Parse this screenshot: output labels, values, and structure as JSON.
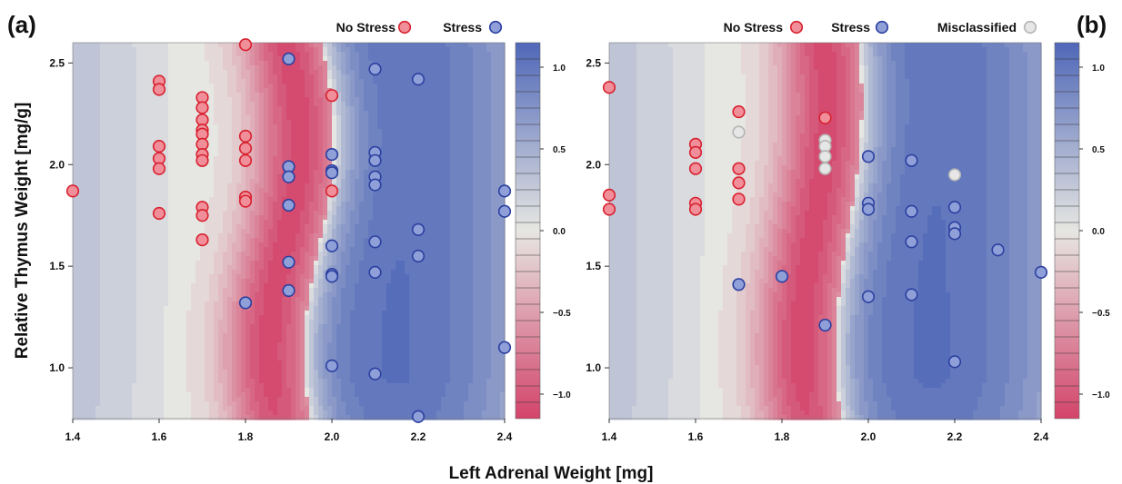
{
  "figure": {
    "xlabel": "Left Adrenal Weight [mg]",
    "ylabel": "Relative Thymus  Weight [mg/g]"
  },
  "colors": {
    "no_stress_fill": "#f08f99",
    "no_stress_edge": "#d8202f",
    "stress_fill": "#8f9fd8",
    "stress_edge": "#2b3fa0",
    "misclassified_fill": "#e6e6e6",
    "misclassified_edge": "#b4b4b4",
    "high": "#4f67b8",
    "mid": "#e6e6e2",
    "low": "#d3446a"
  },
  "chart_data": [
    {
      "type": "scatter",
      "panel": "(a)",
      "background": "filled contour (decision function)",
      "xlim": [
        1.4,
        2.4
      ],
      "ylim": [
        0.75,
        2.6
      ],
      "xticks": [
        "1.4",
        "1.6",
        "1.8",
        "2.0",
        "2.2",
        "2.4"
      ],
      "yticks": [
        "1.0",
        "1.5",
        "2.0",
        "2.5"
      ],
      "colorbar": {
        "range": [
          -1.15,
          1.15
        ],
        "ticks": [
          "1.0",
          "0.5",
          "0.0",
          "−0.5",
          "−1.0"
        ]
      },
      "legend": [
        "No Stress",
        "Stress"
      ],
      "series": [
        {
          "name": "No Stress",
          "points": [
            [
              1.4,
              1.87
            ],
            [
              1.6,
              2.41
            ],
            [
              1.6,
              2.37
            ],
            [
              1.6,
              2.09
            ],
            [
              1.6,
              2.03
            ],
            [
              1.6,
              1.98
            ],
            [
              1.6,
              1.76
            ],
            [
              1.7,
              2.33
            ],
            [
              1.7,
              2.28
            ],
            [
              1.7,
              2.22
            ],
            [
              1.7,
              2.17
            ],
            [
              1.7,
              2.15
            ],
            [
              1.7,
              2.1
            ],
            [
              1.7,
              2.05
            ],
            [
              1.7,
              2.02
            ],
            [
              1.7,
              1.79
            ],
            [
              1.7,
              1.75
            ],
            [
              1.7,
              1.63
            ],
            [
              1.8,
              2.59
            ],
            [
              1.8,
              2.14
            ],
            [
              1.8,
              2.08
            ],
            [
              1.8,
              2.02
            ],
            [
              1.8,
              1.84
            ],
            [
              1.8,
              1.82
            ],
            [
              1.9,
              1.8
            ],
            [
              2.0,
              2.34
            ],
            [
              2.0,
              1.87
            ]
          ]
        },
        {
          "name": "Stress",
          "points": [
            [
              1.8,
              1.32
            ],
            [
              1.9,
              2.52
            ],
            [
              1.9,
              1.99
            ],
            [
              1.9,
              1.94
            ],
            [
              1.9,
              1.8
            ],
            [
              1.9,
              1.52
            ],
            [
              1.9,
              1.38
            ],
            [
              2.0,
              2.05
            ],
            [
              2.0,
              1.97
            ],
            [
              2.0,
              1.96
            ],
            [
              2.0,
              1.6
            ],
            [
              2.0,
              1.46
            ],
            [
              2.0,
              1.45
            ],
            [
              2.0,
              1.01
            ],
            [
              2.1,
              2.47
            ],
            [
              2.1,
              2.06
            ],
            [
              2.1,
              2.02
            ],
            [
              2.1,
              1.94
            ],
            [
              2.1,
              1.9
            ],
            [
              2.1,
              1.62
            ],
            [
              2.1,
              1.47
            ],
            [
              2.1,
              0.97
            ],
            [
              2.2,
              2.42
            ],
            [
              2.2,
              1.68
            ],
            [
              2.2,
              1.55
            ],
            [
              2.2,
              0.76
            ],
            [
              2.4,
              1.87
            ],
            [
              2.4,
              1.77
            ],
            [
              2.4,
              1.1
            ]
          ]
        }
      ]
    },
    {
      "type": "scatter",
      "panel": "(b)",
      "background": "filled contour (decision function)",
      "xlim": [
        1.4,
        2.4
      ],
      "ylim": [
        0.75,
        2.6
      ],
      "xticks": [
        "1.4",
        "1.6",
        "1.8",
        "2.0",
        "2.2",
        "2.4"
      ],
      "yticks": [
        "1.0",
        "1.5",
        "2.0",
        "2.5"
      ],
      "colorbar": {
        "range": [
          -1.15,
          1.15
        ],
        "ticks": [
          "1.0",
          "0.5",
          "0.0",
          "−0.5",
          "−1.0"
        ]
      },
      "legend": [
        "No Stress",
        "Stress",
        "Misclassified"
      ],
      "series": [
        {
          "name": "No Stress",
          "points": [
            [
              1.4,
              2.38
            ],
            [
              1.4,
              1.85
            ],
            [
              1.4,
              1.78
            ],
            [
              1.6,
              2.1
            ],
            [
              1.6,
              2.06
            ],
            [
              1.6,
              1.98
            ],
            [
              1.6,
              1.81
            ],
            [
              1.6,
              1.78
            ],
            [
              1.7,
              2.26
            ],
            [
              1.7,
              1.98
            ],
            [
              1.7,
              1.91
            ],
            [
              1.7,
              1.83
            ],
            [
              1.9,
              2.23
            ]
          ]
        },
        {
          "name": "Stress",
          "points": [
            [
              1.7,
              1.41
            ],
            [
              1.8,
              1.45
            ],
            [
              1.9,
              1.21
            ],
            [
              2.0,
              2.04
            ],
            [
              2.0,
              1.81
            ],
            [
              2.0,
              1.78
            ],
            [
              2.0,
              1.35
            ],
            [
              2.1,
              2.02
            ],
            [
              2.1,
              1.77
            ],
            [
              2.1,
              1.62
            ],
            [
              2.1,
              1.36
            ],
            [
              2.2,
              1.79
            ],
            [
              2.2,
              1.69
            ],
            [
              2.2,
              1.66
            ],
            [
              2.2,
              1.03
            ],
            [
              2.3,
              1.58
            ],
            [
              2.4,
              1.47
            ]
          ]
        },
        {
          "name": "Misclassified",
          "points": [
            [
              1.7,
              2.16
            ],
            [
              1.9,
              2.12
            ],
            [
              1.9,
              2.09
            ],
            [
              1.9,
              2.04
            ],
            [
              1.9,
              1.98
            ],
            [
              2.2,
              1.95
            ]
          ]
        }
      ]
    }
  ]
}
